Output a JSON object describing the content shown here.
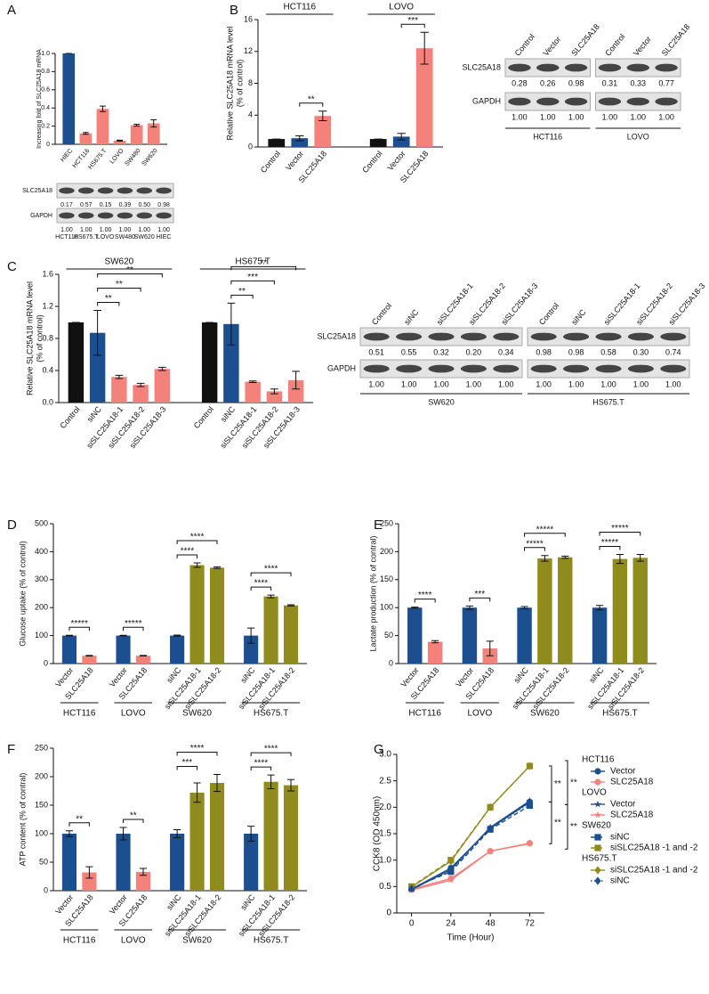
{
  "panel_labels": [
    "A",
    "B",
    "C",
    "D",
    "E",
    "F",
    "G"
  ],
  "chart_data": [
    {
      "type": "bar",
      "ylabel": [
        "Increasing fold of SLC25A18 mRNA"
      ],
      "categories": [
        "HIEC",
        "HCT116",
        "HS675.T",
        "LOVO",
        "SW480",
        "SW620"
      ],
      "values": [
        1.0,
        0.12,
        0.39,
        0.04,
        0.21,
        0.23
      ],
      "errors": [
        0,
        0.01,
        0.03,
        0.005,
        0.01,
        0.04
      ],
      "colors": [
        "#1b4f8f",
        "#f4827b",
        "#f4827b",
        "#f4827b",
        "#f4827b",
        "#f4827b"
      ],
      "ylim": [
        0,
        1.0
      ],
      "yticks": [
        0,
        0.2,
        0.4,
        0.6,
        0.8,
        {
          "value": 1,
          "label": "1.0"
        }
      ]
    },
    {
      "type": "bar",
      "ylabel": [
        "Relative SLC25A18 mRNA level",
        "(% of control)"
      ],
      "group_label_position": "top",
      "ylim": [
        0,
        16
      ],
      "yticks": [
        0,
        4,
        8,
        12,
        16
      ],
      "groups": [
        {
          "name": "HCT116",
          "categories": [
            "Control",
            "Vector",
            "SLC25A18"
          ],
          "values": [
            1,
            1.1,
            3.9
          ],
          "errors": [
            0,
            0.3,
            0.6
          ],
          "colors": [
            "#111111",
            "#1b4f8f",
            "#f4827b"
          ],
          "significance": [
            {
              "label": "**",
              "from": "Vector",
              "to": "SLC25A18"
            }
          ]
        },
        {
          "name": "LOVO",
          "categories": [
            "Control",
            "Vector",
            "SLC25A18"
          ],
          "values": [
            1,
            1.3,
            12.4
          ],
          "errors": [
            0,
            0.4,
            2.0
          ],
          "colors": [
            "#111111",
            "#1b4f8f",
            "#f4827b"
          ],
          "significance": [
            {
              "label": "***",
              "from": "Vector",
              "to": "SLC25A18"
            }
          ]
        }
      ]
    },
    {
      "type": "bar",
      "ylabel": [
        "Relative SLC25A18 mRNA level",
        "(% of control)"
      ],
      "group_label_position": "top",
      "ylim": [
        0,
        1.6
      ],
      "yticks": [
        {
          "value": 0,
          "label": "0.0"
        },
        0.4,
        0.8,
        1.2,
        1.6
      ],
      "groups": [
        {
          "name": "SW620",
          "categories": [
            "Control",
            "siNC",
            "siSLC25A18-1",
            "siSLC25A18-2",
            "siSLC25A18-3"
          ],
          "values": [
            1.0,
            0.87,
            0.32,
            0.22,
            0.42
          ],
          "errors": [
            0,
            0.28,
            0.02,
            0.02,
            0.02
          ],
          "colors": [
            "#111111",
            "#1b4f8f",
            "#f4827b",
            "#f4827b",
            "#f4827b"
          ],
          "significance": [
            {
              "label": "**",
              "from": "siNC",
              "to": "siSLC25A18-1"
            },
            {
              "label": "**",
              "from": "siNC",
              "to": "siSLC25A18-2"
            },
            {
              "label": "**",
              "from": "siNC",
              "to": "siSLC25A18-3"
            }
          ]
        },
        {
          "name": "HS675.T",
          "categories": [
            "Control",
            "siNC",
            "siSLC25A18-1",
            "siSLC25A18-2",
            "siSLC25A18-3"
          ],
          "values": [
            1.0,
            0.98,
            0.26,
            0.14,
            0.28
          ],
          "errors": [
            0,
            0.26,
            0.01,
            0.03,
            0.11
          ],
          "colors": [
            "#111111",
            "#1b4f8f",
            "#f4827b",
            "#f4827b",
            "#f4827b"
          ],
          "significance": [
            {
              "label": "**",
              "from": "siNC",
              "to": "siSLC25A18-1"
            },
            {
              "label": "***",
              "from": "siNC",
              "to": "siSLC25A18-2"
            },
            {
              "label": "**",
              "from": "siNC",
              "to": "siSLC25A18-3"
            }
          ]
        }
      ]
    },
    {
      "type": "bar",
      "ylabel": [
        "Glucose uptake (% of control)"
      ],
      "group_label_position": "bottom",
      "ylim": [
        0,
        500
      ],
      "yticks": [
        0,
        100,
        200,
        300,
        400,
        500
      ],
      "groups": [
        {
          "name": "HCT116",
          "categories": [
            "Vector",
            "SLC25A18"
          ],
          "values": [
            100,
            28
          ],
          "errors": [
            1,
            1
          ],
          "colors": [
            "#1b4f8f",
            "#f4827b"
          ],
          "significance": [
            {
              "label": "*****",
              "from": "Vector",
              "to": "SLC25A18"
            }
          ]
        },
        {
          "name": "LOVO",
          "categories": [
            "Vector",
            "SLC25A18"
          ],
          "values": [
            100,
            28
          ],
          "errors": [
            1,
            1
          ],
          "colors": [
            "#1b4f8f",
            "#f4827b"
          ],
          "significance": [
            {
              "label": "*****",
              "from": "Vector",
              "to": "SLC25A18"
            }
          ]
        },
        {
          "name": "SW620",
          "categories": [
            "siNC",
            "siSLC25A18-1",
            "siSLC25A18-2"
          ],
          "values": [
            100,
            352,
            343
          ],
          "errors": [
            2,
            8,
            3
          ],
          "colors": [
            "#1b4f8f",
            "#8f8b1c",
            "#8f8b1c"
          ],
          "significance": [
            {
              "label": "****",
              "from": "siNC",
              "to": "siSLC25A18-1"
            },
            {
              "label": "****",
              "from": "siNC",
              "to": "siSLC25A18-2"
            }
          ]
        },
        {
          "name": "HS675.T",
          "categories": [
            "siNC",
            "siSLC25A18-1",
            "siSLC25A18-2"
          ],
          "values": [
            100,
            240,
            208
          ],
          "errors": [
            27,
            5,
            2
          ],
          "colors": [
            "#1b4f8f",
            "#8f8b1c",
            "#8f8b1c"
          ],
          "significance": [
            {
              "label": "****",
              "from": "siNC",
              "to": "siSLC25A18-1"
            },
            {
              "label": "****",
              "from": "siNC",
              "to": "siSLC25A18-2"
            }
          ]
        }
      ]
    },
    {
      "type": "bar",
      "ylabel": [
        "Lactate production (% of contral)"
      ],
      "group_label_position": "bottom",
      "ylim": [
        0,
        250
      ],
      "yticks": [
        0,
        50,
        100,
        150,
        200,
        250
      ],
      "groups": [
        {
          "name": "HCT116",
          "categories": [
            "Vector",
            "SLC25A18"
          ],
          "values": [
            100,
            39
          ],
          "errors": [
            1,
            2
          ],
          "colors": [
            "#1b4f8f",
            "#f4827b"
          ],
          "significance": [
            {
              "label": "****",
              "from": "Vector",
              "to": "SLC25A18"
            }
          ]
        },
        {
          "name": "LOVO",
          "categories": [
            "Vector",
            "SLC25A18"
          ],
          "values": [
            100,
            27
          ],
          "errors": [
            3,
            13
          ],
          "colors": [
            "#1b4f8f",
            "#f4827b"
          ],
          "significance": [
            {
              "label": "***",
              "from": "Vector",
              "to": "SLC25A18"
            }
          ]
        },
        {
          "name": "SW620",
          "categories": [
            "siNC",
            "siSLC25A18-1",
            "siSLC25A18-2"
          ],
          "values": [
            100,
            188,
            190
          ],
          "errors": [
            2,
            5,
            2
          ],
          "colors": [
            "#1b4f8f",
            "#8f8b1c",
            "#8f8b1c"
          ],
          "significance": [
            {
              "label": "*****",
              "from": "siNC",
              "to": "siSLC25A18-1"
            },
            {
              "label": "*****",
              "from": "siNC",
              "to": "siSLC25A18-2"
            }
          ]
        },
        {
          "name": "HS675.T",
          "categories": [
            "siNC",
            "siSLC25A18-1",
            "siSLC25A18-2"
          ],
          "values": [
            100,
            187,
            189
          ],
          "errors": [
            4,
            8,
            6
          ],
          "colors": [
            "#1b4f8f",
            "#8f8b1c",
            "#8f8b1c"
          ],
          "significance": [
            {
              "label": "*****",
              "from": "siNC",
              "to": "siSLC25A18-1"
            },
            {
              "label": "*****",
              "from": "siNC",
              "to": "siSLC25A18-2"
            }
          ]
        }
      ]
    },
    {
      "type": "bar",
      "ylabel": [
        "ATP content (% of contral)"
      ],
      "group_label_position": "bottom",
      "ylim": [
        0,
        250
      ],
      "yticks": [
        0,
        50,
        100,
        150,
        200,
        250
      ],
      "groups": [
        {
          "name": "HCT116",
          "categories": [
            "Vector",
            "SLC25A18"
          ],
          "values": [
            100,
            32
          ],
          "errors": [
            5,
            10
          ],
          "colors": [
            "#1b4f8f",
            "#f4827b"
          ],
          "significance": [
            {
              "label": "**",
              "from": "Vector",
              "to": "SLC25A18"
            }
          ]
        },
        {
          "name": "LOVO",
          "categories": [
            "Vector",
            "SLC25A18"
          ],
          "values": [
            100,
            33
          ],
          "errors": [
            11,
            6
          ],
          "colors": [
            "#1b4f8f",
            "#f4827b"
          ],
          "significance": [
            {
              "label": "**",
              "from": "Vector",
              "to": "SLC25A18"
            }
          ]
        },
        {
          "name": "SW620",
          "categories": [
            "siNC",
            "siSLC25A18-1",
            "siSLC25A18-2"
          ],
          "values": [
            100,
            172,
            189
          ],
          "errors": [
            7,
            17,
            15
          ],
          "colors": [
            "#1b4f8f",
            "#8f8b1c",
            "#8f8b1c"
          ],
          "significance": [
            {
              "label": "***",
              "from": "siNC",
              "to": "siSLC25A18-1"
            },
            {
              "label": "****",
              "from": "siNC",
              "to": "siSLC25A18-2"
            }
          ]
        },
        {
          "name": "HS675.T",
          "categories": [
            "siNC",
            "siSLC25A18-1",
            "siSLC25A18-2"
          ],
          "values": [
            100,
            191,
            185
          ],
          "errors": [
            13,
            12,
            10
          ],
          "colors": [
            "#1b4f8f",
            "#8f8b1c",
            "#8f8b1c"
          ],
          "significance": [
            {
              "label": "****",
              "from": "siNC",
              "to": "siSLC25A18-1"
            },
            {
              "label": "****",
              "from": "siNC",
              "to": "siSLC25A18-2"
            }
          ]
        }
      ]
    },
    {
      "type": "line",
      "xlabel": "Time (Hour)",
      "ylabel": [
        "CCK8 (OD 450nm)"
      ],
      "x": [
        0,
        24,
        48,
        72
      ],
      "xlim": [
        -9,
        81
      ],
      "xticks": [
        0,
        24,
        48,
        72
      ],
      "ylim": [
        0,
        3.0
      ],
      "yticks": [
        0,
        0.5,
        {
          "value": 1,
          "label": "1.0"
        },
        1.5,
        {
          "value": 2,
          "label": "2.0"
        },
        2.5,
        {
          "value": 3,
          "label": "3.0"
        }
      ],
      "series": [
        {
          "group": "HCT116",
          "name": "Vector",
          "color": "#1b4f8f",
          "marker": "circle",
          "dash": "solid",
          "values": [
            0.45,
            0.85,
            1.6,
            2.1
          ]
        },
        {
          "group": "HCT116",
          "name": "SLC25A18",
          "color": "#f4827b",
          "marker": "circle",
          "dash": "solid",
          "values": [
            0.45,
            0.65,
            1.17,
            1.32
          ]
        },
        {
          "group": "LOVO",
          "name": "Vector",
          "color": "#1b4f8f",
          "marker": "star",
          "dash": "solid",
          "values": [
            0.44,
            0.82,
            1.62,
            2.12
          ]
        },
        {
          "group": "LOVO",
          "name": "SLC25A18",
          "color": "#f4827b",
          "marker": "star",
          "dash": "solid",
          "values": [
            0.43,
            0.62,
            1.17,
            1.31
          ]
        },
        {
          "group": "SW620",
          "name": "siNC",
          "color": "#1b4f8f",
          "marker": "square",
          "dash": "dashed",
          "values": [
            0.47,
            0.78,
            1.58,
            2.03
          ]
        },
        {
          "group": "SW620",
          "name": "siSLC25A18 -1 and -2",
          "color": "#8f8b1c",
          "marker": "square",
          "dash": "dashed",
          "values": [
            0.5,
            1.0,
            2.0,
            2.78
          ]
        },
        {
          "group": "HS675.T",
          "name": "siSLC25A18 -1 and -2",
          "color": "#8f8b1c",
          "marker": "diamond",
          "dash": "solid",
          "values": [
            0.49,
            0.98,
            2.0,
            2.78
          ]
        },
        {
          "group": "HS675.T",
          "name": "siNC",
          "color": "#1b4f8f",
          "marker": "diamond",
          "dash": "dotted",
          "values": [
            0.46,
            0.8,
            1.6,
            2.08
          ]
        }
      ],
      "annotations": [
        "**",
        "**",
        "**",
        "**"
      ]
    }
  ],
  "blots": [
    {
      "row_names": [
        "SLC25A18",
        "GAPDH"
      ],
      "lane_position": "bottom",
      "groups": [
        {
          "lanes": [
            "HCT116",
            "HS675.T",
            "LOVO",
            "SW480",
            "SW620",
            "HIEC"
          ],
          "rows": [
            [
              "0.17",
              "0.57",
              "0.15",
              "0.39",
              "0.50",
              "0.98"
            ],
            [
              "1.00",
              "1.00",
              "1.00",
              "1.00",
              "1.00",
              "1.00"
            ]
          ]
        }
      ]
    },
    {
      "row_names": [
        "SLC25A18",
        "GAPDH"
      ],
      "lane_position": "top",
      "groups": [
        {
          "name": "HCT116",
          "lanes": [
            "Control",
            "Vector",
            "SLC25A18"
          ],
          "rows": [
            [
              "0.28",
              "0.26",
              "0.98"
            ],
            [
              "1.00",
              "1.00",
              "1.00"
            ]
          ]
        },
        {
          "name": "LOVO",
          "lanes": [
            "Control",
            "Vector",
            "SLC25A18"
          ],
          "rows": [
            [
              "0.31",
              "0.33",
              "0.77"
            ],
            [
              "1.00",
              "1.00",
              "1.00"
            ]
          ]
        }
      ]
    },
    {
      "row_names": [
        "SLC25A18",
        "GAPDH"
      ],
      "lane_position": "top",
      "groups": [
        {
          "name": "SW620",
          "lanes": [
            "Control",
            "siNC",
            "siSLC25A18-1",
            "siSLC25A18-2",
            "siSLC25A18-3"
          ],
          "rows": [
            [
              "0.51",
              "0.55",
              "0.32",
              "0.20",
              "0.34"
            ],
            [
              "1.00",
              "1.00",
              "1.00",
              "1.00",
              "1.00"
            ]
          ]
        },
        {
          "name": "HS675.T",
          "lanes": [
            "Control",
            "siNC",
            "siSLC25A18-1",
            "siSLC25A18-2",
            "siSLC25A18-3"
          ],
          "rows": [
            [
              "0.98",
              "0.98",
              "0.58",
              "0.30",
              "0.74"
            ],
            [
              "1.00",
              "1.00",
              "1.00",
              "1.00",
              "1.00"
            ]
          ]
        }
      ]
    }
  ]
}
